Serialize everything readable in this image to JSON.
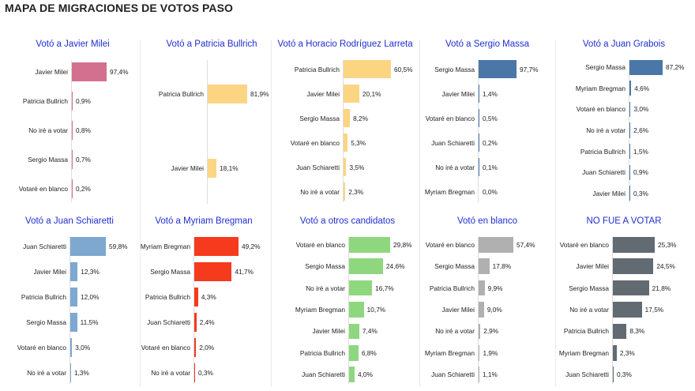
{
  "title": "MAPA DE MIGRACIONES DE VOTOS PASO",
  "chart_data": [
    {
      "type": "bar",
      "orientation": "horizontal",
      "title": "Votó a Javier Milei",
      "color": "#d4708f",
      "categories": [
        "Javier Milei",
        "Patricia Bullrich",
        "No iré a votar",
        "Sergio Massa",
        "Votaré en blanco"
      ],
      "values": [
        97.4,
        0.9,
        0.8,
        0.7,
        0.2
      ],
      "labels": [
        "97,4%",
        "0,9%",
        "0,8%",
        "0,7%",
        "0,2%"
      ]
    },
    {
      "type": "bar",
      "orientation": "horizontal",
      "title": "Votó a Patricia Bullrich",
      "color": "#fcd583",
      "categories": [
        "Patricia Bullrich",
        "Javier Milei"
      ],
      "values": [
        81.9,
        18.1
      ],
      "labels": [
        "81,9%",
        "18,1%"
      ]
    },
    {
      "type": "bar",
      "orientation": "horizontal",
      "title": "Votó a Horacio Rodríguez Larreta",
      "color": "#fcd583",
      "categories": [
        "Patricia Bullrich",
        "Javier Milei",
        "Sergio Massa",
        "Votaré en blanco",
        "Juan Schiaretti",
        "No iré a votar"
      ],
      "values": [
        60.5,
        20.1,
        8.2,
        5.3,
        3.5,
        2.3
      ],
      "labels": [
        "60,5%",
        "20,1%",
        "8,2%",
        "5,3%",
        "3,5%",
        "2,3%"
      ]
    },
    {
      "type": "bar",
      "orientation": "horizontal",
      "title": "Votó a Sergio Massa",
      "color": "#4a77a8",
      "categories": [
        "Sergio Massa",
        "Javier Milei",
        "Votaré en blanco",
        "Juan Schiaretti",
        "No iré a votar",
        "Myriam Bregman"
      ],
      "values": [
        97.7,
        1.4,
        0.5,
        0.2,
        0.1,
        0.0
      ],
      "labels": [
        "97,7%",
        "1,4%",
        "0,5%",
        "0,2%",
        "0,1%",
        "0,0%"
      ]
    },
    {
      "type": "bar",
      "orientation": "horizontal",
      "title": "Votó a Juan Grabois",
      "color": "#4a77a8",
      "categories": [
        "Sergio Massa",
        "Myriam Bregman",
        "Votaré en blanco",
        "No iré a votar",
        "Patricia Bullrich",
        "Juan Schiaretti",
        "Javier Milei"
      ],
      "values": [
        87.2,
        4.6,
        3.0,
        2.6,
        1.5,
        0.9,
        0.3
      ],
      "labels": [
        "87,2%",
        "4,6%",
        "3,0%",
        "2,6%",
        "1,5%",
        "0,9%",
        "0,3%"
      ]
    },
    {
      "type": "bar",
      "orientation": "horizontal",
      "title": "Votó a Juan Schiaretti",
      "color": "#7ea8d0",
      "categories": [
        "Juan Schiaretti",
        "Javier Milei",
        "Patricia Bullrich",
        "Sergio Massa",
        "Votaré en blanco",
        "No iré a votar"
      ],
      "values": [
        59.8,
        12.3,
        12.0,
        11.5,
        3.0,
        1.3
      ],
      "labels": [
        "59,8%",
        "12,3%",
        "12,0%",
        "11,5%",
        "3,0%",
        "1,3%"
      ]
    },
    {
      "type": "bar",
      "orientation": "horizontal",
      "title": "Votó a Myriam Bregman",
      "color": "#f53a1e",
      "categories": [
        "Myriam Bregman",
        "Sergio Massa",
        "Patricia Bullrich",
        "Juan Schiaretti",
        "Votaré en blanco",
        "No iré a votar"
      ],
      "values": [
        49.2,
        41.7,
        4.3,
        2.4,
        2.0,
        0.3
      ],
      "labels": [
        "49,2%",
        "41,7%",
        "4,3%",
        "2,4%",
        "2,0%",
        "0,3%"
      ]
    },
    {
      "type": "bar",
      "orientation": "horizontal",
      "title": "Votó a otros candidatos",
      "color": "#8fd77f",
      "categories": [
        "Votaré en blanco",
        "Sergio Massa",
        "No iré a votar",
        "Myriam Bregman",
        "Javier Milei",
        "Patricia Bullrich",
        "Juan Schiaretti"
      ],
      "values": [
        29.8,
        24.6,
        16.7,
        10.7,
        7.4,
        6.8,
        4.0
      ],
      "labels": [
        "29,8%",
        "24,6%",
        "16,7%",
        "10,7%",
        "7,4%",
        "6,8%",
        "4,0%"
      ]
    },
    {
      "type": "bar",
      "orientation": "horizontal",
      "title": "Votó en blanco",
      "color": "#b0b0b0",
      "categories": [
        "Votaré en blanco",
        "Sergio Massa",
        "Patricia Bullrich",
        "Javier Milei",
        "No iré a votar",
        "Myriam Bregman",
        "Juan Schiaretti"
      ],
      "values": [
        57.4,
        17.8,
        9.9,
        9.0,
        2.9,
        1.9,
        1.1
      ],
      "labels": [
        "57,4%",
        "17,8%",
        "9,9%",
        "9,0%",
        "2,9%",
        "1,9%",
        "1,1%"
      ]
    },
    {
      "type": "bar",
      "orientation": "horizontal",
      "title": "NO FUE A VOTAR",
      "color": "#626a72",
      "categories": [
        "Votaré en blanco",
        "Javier Milei",
        "Sergio Massa",
        "No iré a votar",
        "Patricia Bullrich",
        "Myriam Bregman",
        "Juan Schiaretti"
      ],
      "values": [
        25.3,
        24.5,
        21.8,
        17.5,
        8.3,
        2.3,
        0.3
      ],
      "labels": [
        "25,3%",
        "24,5%",
        "21,8%",
        "17,5%",
        "8,3%",
        "2,3%",
        "0,3%"
      ]
    }
  ]
}
